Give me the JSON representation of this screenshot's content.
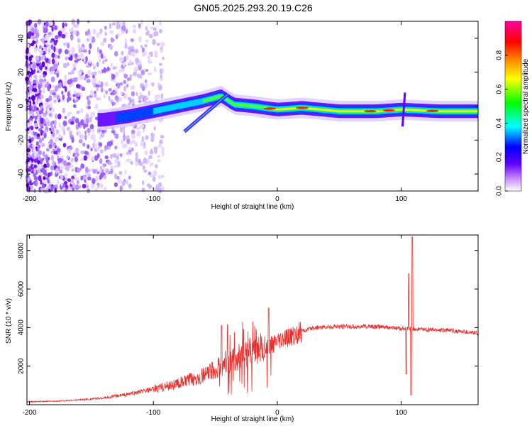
{
  "title": "GN05.2025.293.20.19.C26",
  "chart_data": [
    {
      "type": "heatmap",
      "name": "spectrogram",
      "xlabel": "Height of straight line (km)",
      "ylabel": "Frequency (Hz)",
      "xlim": [
        -202,
        162
      ],
      "ylim": [
        -50,
        50
      ],
      "xticks": [
        -200,
        -100,
        0,
        100
      ],
      "yticks": [
        40,
        20,
        0,
        -20,
        -40
      ],
      "ridge": [
        {
          "x": -140,
          "y": -8
        },
        {
          "x": -120,
          "y": -6
        },
        {
          "x": -100,
          "y": -3
        },
        {
          "x": -80,
          "y": 0
        },
        {
          "x": -60,
          "y": 3
        },
        {
          "x": -45,
          "y": 6
        },
        {
          "x": -35,
          "y": 1
        },
        {
          "x": -20,
          "y": 0
        },
        {
          "x": 0,
          "y": -2
        },
        {
          "x": 20,
          "y": -1
        },
        {
          "x": 50,
          "y": -3
        },
        {
          "x": 80,
          "y": -3
        },
        {
          "x": 100,
          "y": -2
        },
        {
          "x": 130,
          "y": -3
        },
        {
          "x": 162,
          "y": -3
        }
      ],
      "colorbar": {
        "label": "Normalized spectral amplitude",
        "ticks": [
          "0.0",
          "0.2",
          "0.4",
          "0.6",
          "0.8"
        ],
        "colors": [
          "#ffffff",
          "#c080ff",
          "#6000ff",
          "#0000ff",
          "#00ffff",
          "#00ff00",
          "#ffff00",
          "#ff8000",
          "#ff0000",
          "#ff00a0"
        ]
      }
    },
    {
      "type": "line",
      "name": "snr",
      "xlabel": "Height of straight line (km)",
      "ylabel": "SNR (10 * v/v)",
      "xlim": [
        -202,
        162
      ],
      "ylim": [
        0,
        8800
      ],
      "xticks": [
        -200,
        -100,
        0,
        100
      ],
      "yticks": [
        2000,
        4000,
        6000,
        8000
      ],
      "color": "#e8302f",
      "envelope": [
        {
          "x": -202,
          "y": 150
        },
        {
          "x": -180,
          "y": 180
        },
        {
          "x": -160,
          "y": 250
        },
        {
          "x": -140,
          "y": 350
        },
        {
          "x": -120,
          "y": 550
        },
        {
          "x": -100,
          "y": 800
        },
        {
          "x": -80,
          "y": 1100
        },
        {
          "x": -60,
          "y": 1500
        },
        {
          "x": -45,
          "y": 2000
        },
        {
          "x": -30,
          "y": 2500
        },
        {
          "x": -15,
          "y": 2900
        },
        {
          "x": 0,
          "y": 3200
        },
        {
          "x": 10,
          "y": 3500
        },
        {
          "x": 20,
          "y": 3800
        },
        {
          "x": 30,
          "y": 4000
        },
        {
          "x": 50,
          "y": 4050
        },
        {
          "x": 80,
          "y": 4050
        },
        {
          "x": 100,
          "y": 3950
        },
        {
          "x": 120,
          "y": 3900
        },
        {
          "x": 140,
          "y": 3850
        },
        {
          "x": 162,
          "y": 3700
        }
      ],
      "spikes": [
        {
          "x": -45,
          "y": 4100
        },
        {
          "x": -40,
          "y": 4150
        },
        {
          "x": -27,
          "y": 3900
        },
        {
          "x": -7,
          "y": 5000
        },
        {
          "x": 106,
          "y": 6800
        },
        {
          "x": 109,
          "y": 8700
        },
        {
          "x": 108,
          "y": 500
        },
        {
          "x": 104,
          "y": 1600
        }
      ]
    }
  ]
}
